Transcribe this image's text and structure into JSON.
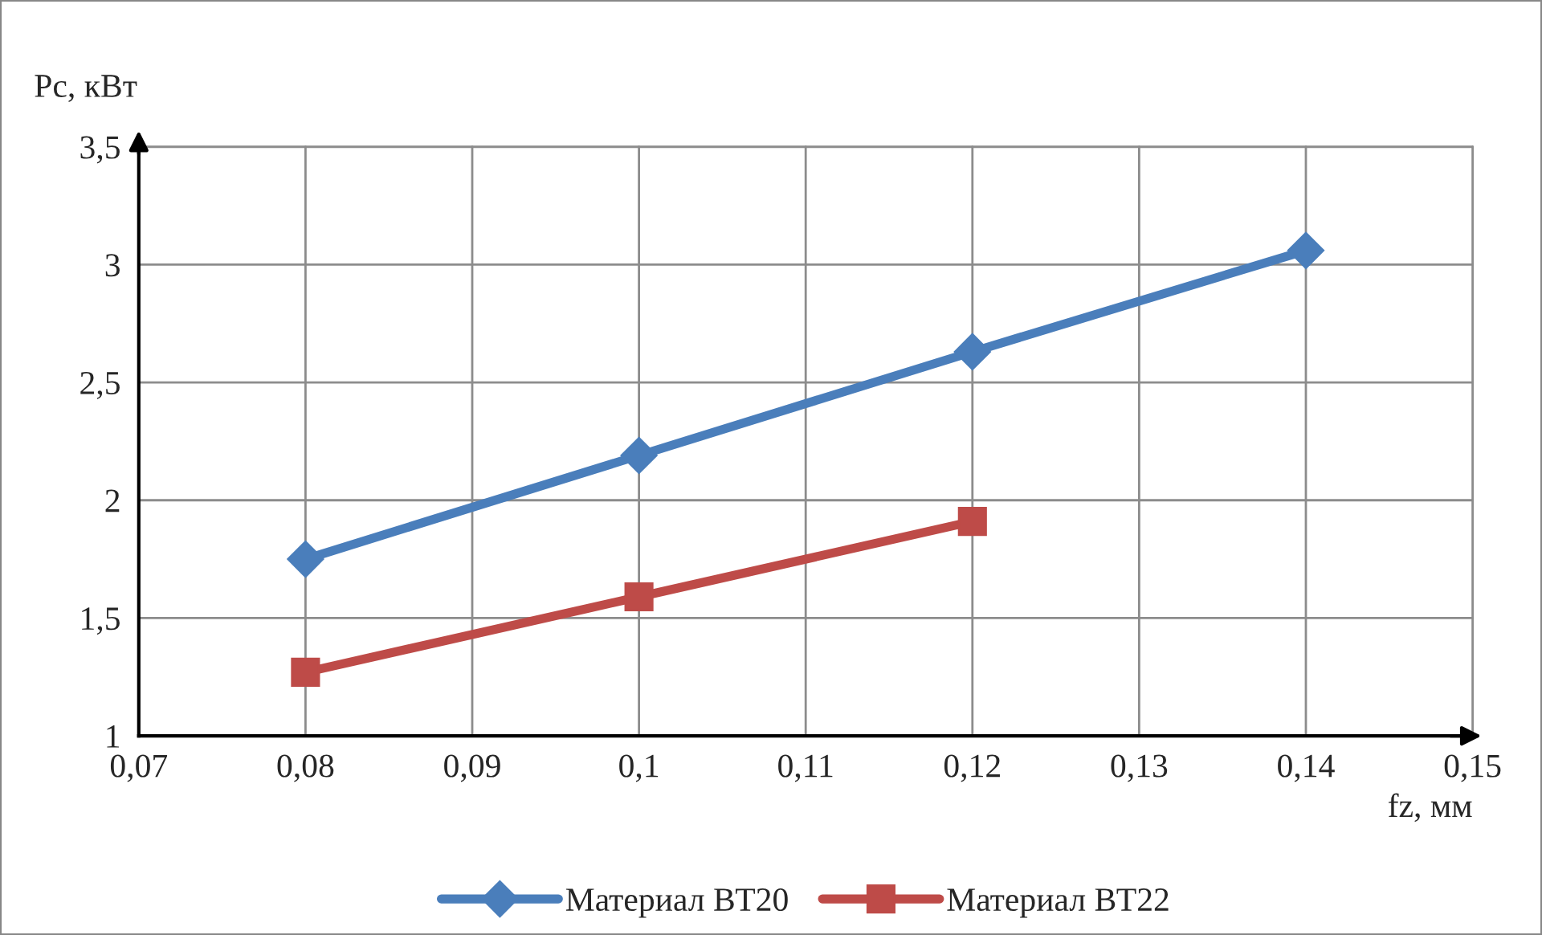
{
  "chart_data": {
    "type": "line",
    "xlabel": "fz, мм",
    "ylabel": "Pc, кВт",
    "x": [
      0.08,
      0.1,
      0.12,
      0.14
    ],
    "series": [
      {
        "name": "Материал ВТ20",
        "color": "#4a7ebb",
        "marker": "diamond",
        "values": [
          1.75,
          2.19,
          2.63,
          3.06
        ]
      },
      {
        "name": "Материал ВТ22",
        "color": "#be4b48",
        "marker": "square",
        "values": [
          1.27,
          1.59,
          1.91,
          null
        ]
      }
    ],
    "xlim": [
      0.07,
      0.15
    ],
    "xticks": [
      {
        "value": 0.07,
        "label": "0,07"
      },
      {
        "value": 0.08,
        "label": "0,08"
      },
      {
        "value": 0.09,
        "label": "0,09"
      },
      {
        "value": 0.1,
        "label": "0,1"
      },
      {
        "value": 0.11,
        "label": "0,11"
      },
      {
        "value": 0.12,
        "label": "0,12"
      },
      {
        "value": 0.13,
        "label": "0,13"
      },
      {
        "value": 0.14,
        "label": "0,14"
      },
      {
        "value": 0.15,
        "label": "0,15"
      }
    ],
    "ylim": [
      1,
      3.5
    ],
    "yticks": [
      1,
      {
        "value": 1.5,
        "label": "1,5"
      },
      2,
      {
        "value": 2.5,
        "label": "2,5"
      },
      3,
      {
        "value": 3.5,
        "label": "3,5"
      }
    ],
    "grid": true,
    "legend": "bottom",
    "line_style": "solid"
  }
}
